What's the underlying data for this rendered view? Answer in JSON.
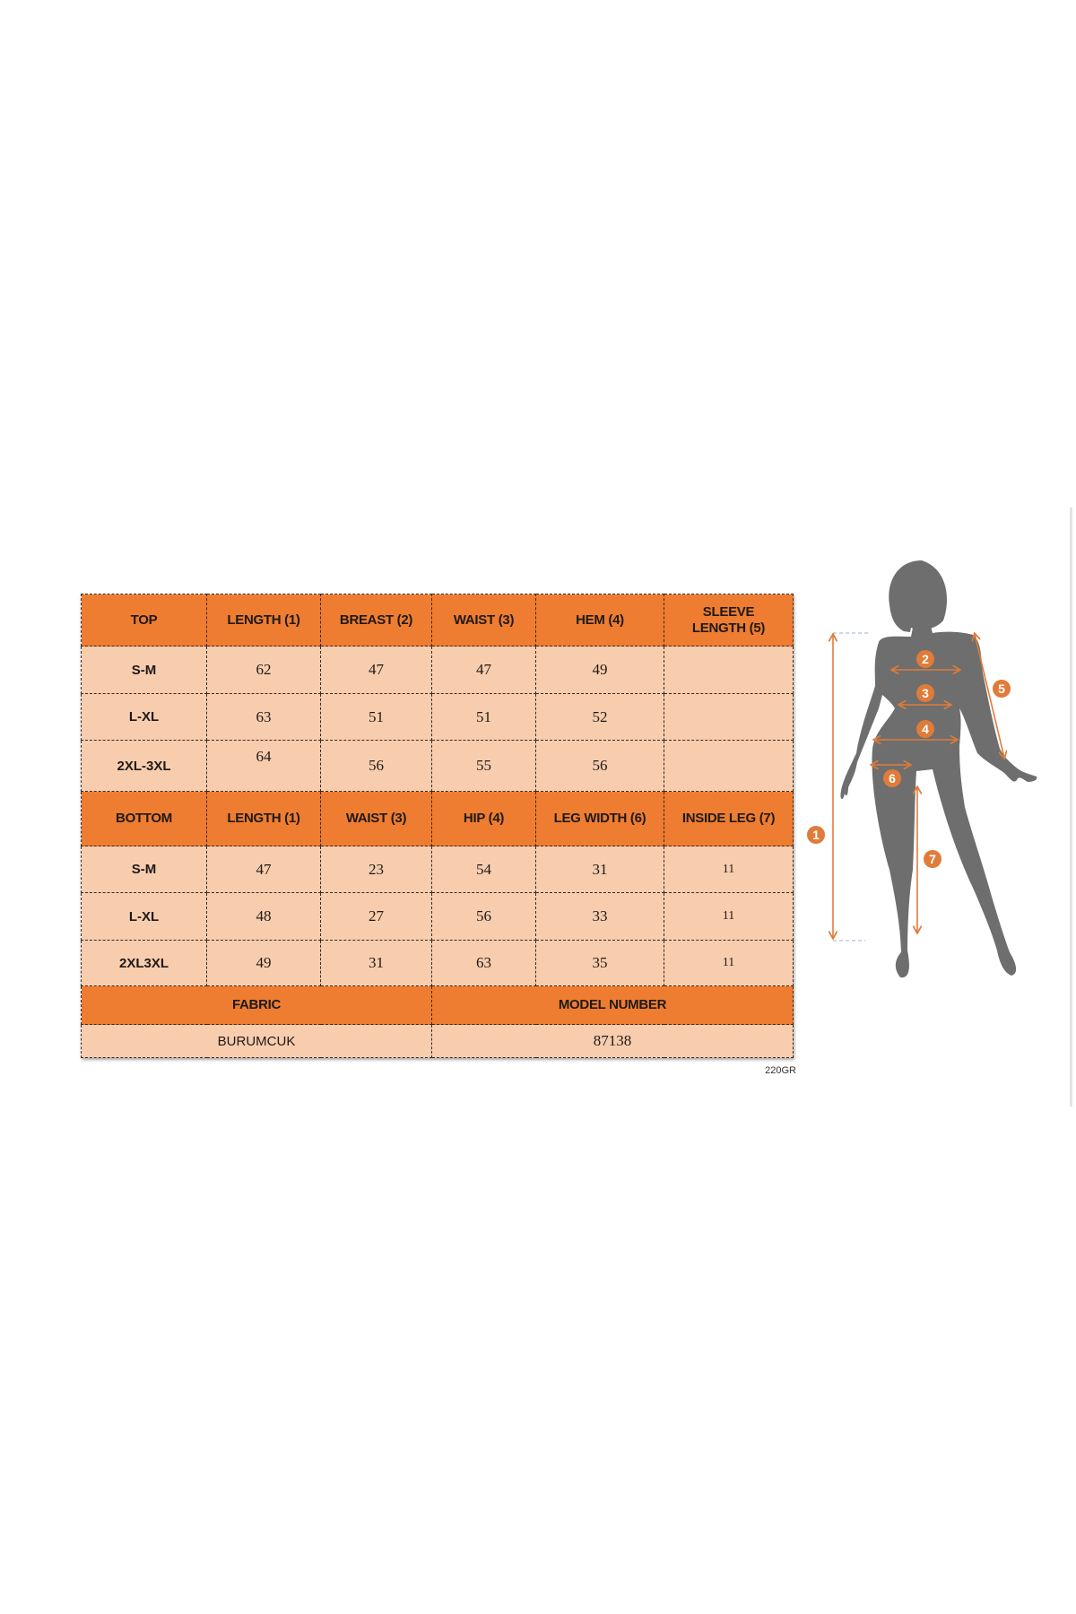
{
  "top_section": {
    "headers": [
      "TOP",
      "LENGTH (1)",
      "BREAST (2)",
      "WAIST (3)",
      "HEM (4)",
      "SLEEVE LENGTH (5)"
    ],
    "rows": [
      {
        "size": "S-M",
        "values": [
          "62",
          "47",
          "47",
          "49",
          ""
        ]
      },
      {
        "size": "L-XL",
        "values": [
          "63",
          "51",
          "51",
          "52",
          ""
        ]
      },
      {
        "size": "2XL-3XL",
        "values": [
          "64",
          "56",
          "55",
          "56",
          ""
        ]
      }
    ]
  },
  "bottom_section": {
    "headers": [
      "BOTTOM",
      "LENGTH (1)",
      "WAIST (3)",
      "HIP (4)",
      "LEG WIDTH (6)",
      "INSIDE LEG (7)"
    ],
    "rows": [
      {
        "size": "S-M",
        "values": [
          "47",
          "23",
          "54",
          "31",
          "11"
        ]
      },
      {
        "size": "L-XL",
        "values": [
          "48",
          "27",
          "56",
          "33",
          "11"
        ]
      },
      {
        "size": "2XL3XL",
        "values": [
          "49",
          "31",
          "63",
          "35",
          "11"
        ]
      }
    ]
  },
  "info": {
    "fabric_label": "FABRIC",
    "model_label": "MODEL NUMBER",
    "fabric_value": "BURUMCUK",
    "model_value": "87138"
  },
  "weight": "220GR",
  "figure": {
    "markers": [
      "1",
      "2",
      "3",
      "4",
      "5",
      "6",
      "7"
    ]
  },
  "colors": {
    "header_orange": "#ee7d31",
    "cell_peach": "#f8cdae",
    "silhouette": "#6e6e6e",
    "arrow": "#e07b39"
  }
}
